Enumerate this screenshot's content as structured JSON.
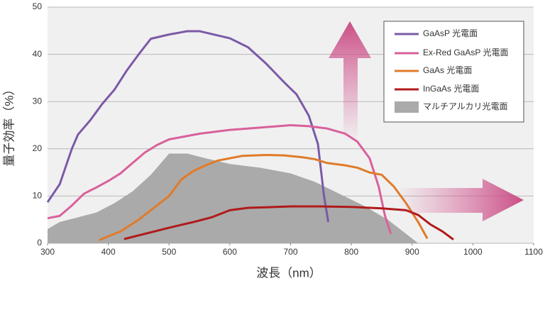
{
  "chart_data": {
    "type": "line",
    "x_label": "波長（nm）",
    "y_label": "量子効率（%）",
    "xlim": [
      300,
      1100
    ],
    "xticks": [
      300,
      400,
      500,
      600,
      700,
      800,
      900,
      1000,
      1100
    ],
    "ylim": [
      0,
      50
    ],
    "yticks": [
      0,
      10,
      20,
      30,
      40,
      50
    ],
    "grid": true,
    "legend": "upper right",
    "series": [
      {
        "name": "GaAsP 光電面",
        "color": "#7b5aa6",
        "x": [
          300,
          320,
          340,
          350,
          370,
          390,
          410,
          430,
          450,
          470,
          500,
          530,
          550,
          570,
          600,
          630,
          660,
          690,
          710,
          730,
          745,
          755,
          762
        ],
        "values": [
          8.7,
          12.5,
          20,
          23,
          26,
          29.5,
          32.5,
          36.5,
          40,
          43.3,
          44.2,
          44.9,
          44.9,
          44.3,
          43.4,
          41.5,
          38,
          34,
          31.5,
          27,
          21,
          10,
          4.5
        ]
      },
      {
        "name": "Ex-Red GaAsP 光電面",
        "color": "#d9609b",
        "x": [
          300,
          320,
          340,
          360,
          380,
          400,
          420,
          440,
          460,
          480,
          500,
          550,
          600,
          650,
          700,
          730,
          760,
          790,
          810,
          830,
          845,
          855,
          865
        ],
        "values": [
          5.3,
          5.8,
          8,
          10.5,
          11.8,
          13.2,
          14.8,
          17,
          19.2,
          20.8,
          22,
          23.2,
          24,
          24.5,
          25,
          24.8,
          24.3,
          23.2,
          21.5,
          18,
          12,
          6,
          2
        ]
      },
      {
        "name": "GaAs 光電面",
        "color": "#e07b2a",
        "x": [
          385,
          420,
          450,
          480,
          500,
          520,
          540,
          560,
          580,
          600,
          620,
          660,
          690,
          720,
          740,
          760,
          790,
          810,
          830,
          850,
          870,
          890,
          910,
          925
        ],
        "values": [
          0.7,
          2.5,
          5,
          8,
          10,
          13.5,
          15.3,
          16.5,
          17.5,
          18,
          18.5,
          18.7,
          18.6,
          18.2,
          17.8,
          17,
          16.5,
          16,
          15,
          14.5,
          12,
          8.5,
          4.5,
          1
        ]
      },
      {
        "name": "InGaAs 光電面",
        "color": "#b01a1a",
        "x": [
          426,
          460,
          500,
          540,
          570,
          600,
          630,
          700,
          750,
          800,
          850,
          890,
          910,
          930,
          950,
          968
        ],
        "values": [
          0.9,
          2,
          3.3,
          4.5,
          5.5,
          7,
          7.5,
          7.8,
          7.8,
          7.7,
          7.4,
          7,
          6,
          4,
          2.5,
          0.8
        ]
      },
      {
        "name": "マルチアルカリ光電面",
        "color": "#aaaaaa",
        "style": "area",
        "x": [
          300,
          320,
          350,
          380,
          410,
          440,
          470,
          490,
          500,
          530,
          560,
          600,
          650,
          700,
          740,
          780,
          820,
          860,
          890,
          910
        ],
        "values": [
          3,
          4.5,
          5.5,
          6.5,
          8.5,
          11,
          14.5,
          17.5,
          19,
          19,
          18,
          16.8,
          16,
          14.8,
          13,
          10.5,
          8,
          5,
          2,
          0
        ]
      }
    ]
  }
}
